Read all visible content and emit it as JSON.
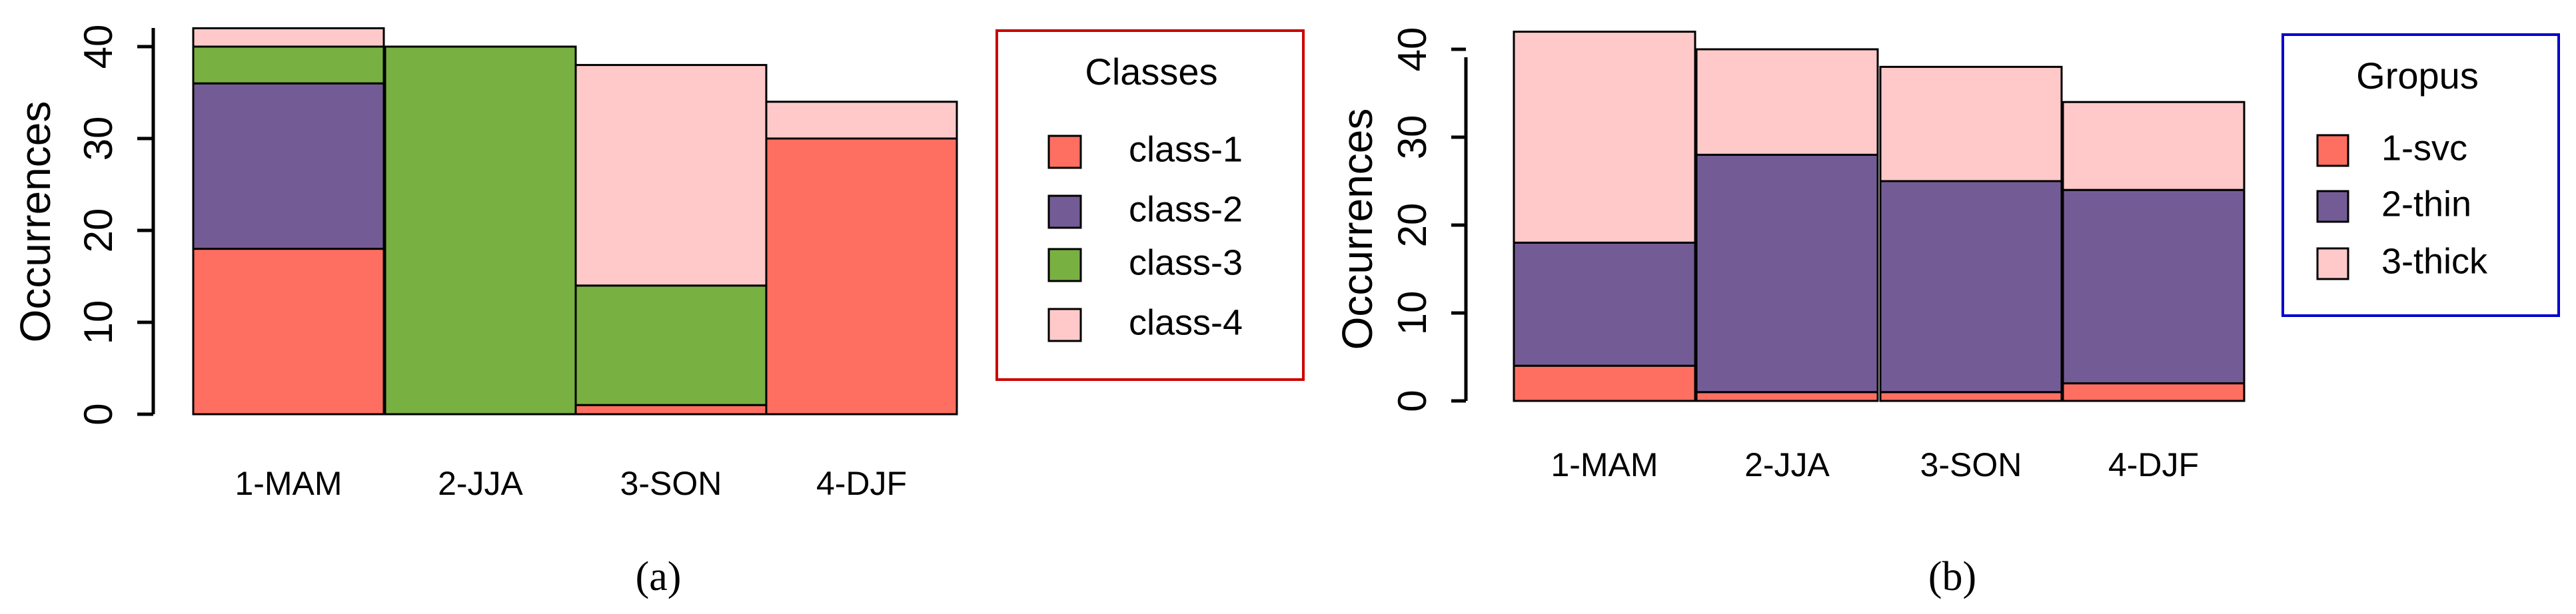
{
  "colors": {
    "class-1": "#FF6F61",
    "class-2": "#735C96",
    "class-3": "#78B042",
    "class-4": "#FFC9C9",
    "legend_a_border": "#CC0000",
    "legend_b_border": "#0000CC"
  },
  "chart_data": [
    {
      "type": "bar",
      "stacked": true,
      "panel_label": "(a)",
      "ylabel": "Occurrences",
      "xlabel": "",
      "ylim": [
        0,
        42
      ],
      "yticks": [
        "0",
        "10",
        "20",
        "30",
        "40"
      ],
      "categories": [
        "1-MAM",
        "2-JJA",
        "3-SON",
        "4-DJF"
      ],
      "legend": {
        "title": "Classes",
        "position": "right"
      },
      "series": [
        {
          "name": "class-1",
          "color": "#FF6F61",
          "values": [
            18,
            0,
            1,
            30
          ]
        },
        {
          "name": "class-2",
          "color": "#735C96",
          "values": [
            18,
            0,
            0,
            0
          ]
        },
        {
          "name": "class-3",
          "color": "#78B042",
          "values": [
            4,
            40,
            13,
            0
          ]
        },
        {
          "name": "class-4",
          "color": "#FFC9C9",
          "values": [
            2,
            0,
            24,
            4
          ]
        }
      ]
    },
    {
      "type": "bar",
      "stacked": true,
      "panel_label": "(b)",
      "ylabel": "Occurrences",
      "xlabel": "",
      "ylim": [
        0,
        42
      ],
      "yticks": [
        "0",
        "10",
        "20",
        "30",
        "40"
      ],
      "categories": [
        "1-MAM",
        "2-JJA",
        "3-SON",
        "4-DJF"
      ],
      "legend": {
        "title": "Gropus",
        "position": "right"
      },
      "series": [
        {
          "name": "1-svc",
          "color": "#FF6F61",
          "values": [
            4,
            1,
            1,
            2
          ]
        },
        {
          "name": "2-thin",
          "color": "#735C96",
          "values": [
            14,
            27,
            24,
            22
          ]
        },
        {
          "name": "3-thick",
          "color": "#FFC9C9",
          "values": [
            24,
            12,
            13,
            10
          ]
        }
      ]
    }
  ]
}
